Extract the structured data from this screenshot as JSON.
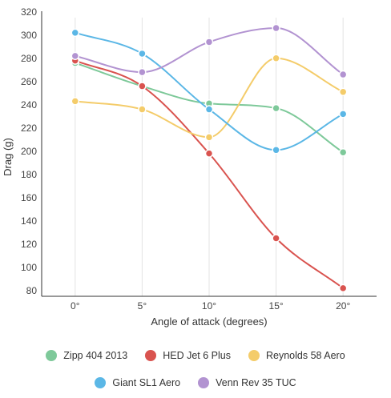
{
  "chart_data": {
    "type": "line",
    "x": [
      "0°",
      "5°",
      "10°",
      "15°",
      "20°"
    ],
    "xlabel": "Angle of attack (degrees)",
    "ylabel": "Drag (g)",
    "ylim": [
      80,
      320
    ],
    "yticks": [
      80,
      100,
      120,
      140,
      160,
      180,
      200,
      220,
      240,
      260,
      280,
      300,
      320
    ],
    "grid": "vertical lines at categories",
    "legend_position": "bottom",
    "series": [
      {
        "name": "Zipp 404 2013",
        "color": "#7ec99a",
        "values": [
          281,
          261,
          246,
          242,
          204
        ]
      },
      {
        "name": "HED Jet 6 Plus",
        "color": "#d9534f",
        "values": [
          283,
          261,
          203,
          130,
          87
        ]
      },
      {
        "name": "Reynolds 58 Aero",
        "color": "#f4cc6a",
        "values": [
          248,
          241,
          217,
          285,
          256
        ]
      },
      {
        "name": "Giant SL1 Aero",
        "color": "#5bb7e6",
        "values": [
          307,
          289,
          241,
          206,
          237
        ]
      },
      {
        "name": "Venn Rev 35 TUC",
        "color": "#b293d1",
        "values": [
          287,
          273,
          299,
          311,
          271
        ]
      }
    ]
  }
}
